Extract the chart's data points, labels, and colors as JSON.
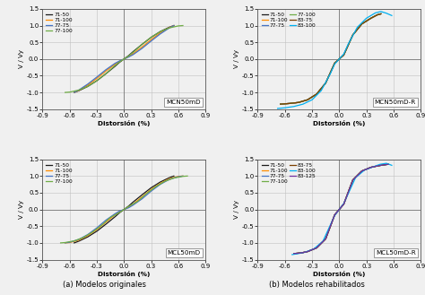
{
  "panels": [
    {
      "title": "MCN50mD",
      "xlim": [
        -0.9,
        0.9
      ],
      "ylim": [
        -1.5,
        1.5
      ],
      "yticks": [
        -1.5,
        -1.0,
        -0.5,
        0.0,
        0.5,
        1.0,
        1.5
      ],
      "xticks": [
        -0.9,
        -0.6,
        -0.3,
        0.0,
        0.3,
        0.6,
        0.9
      ],
      "legend_ncol": 1,
      "series": [
        {
          "label": "71-50",
          "color": "#1a1a1a",
          "lw": 0.9,
          "x": [
            -0.55,
            -0.5,
            -0.4,
            -0.3,
            -0.2,
            -0.1,
            -0.05,
            0.0,
            0.05,
            0.1,
            0.2,
            0.3,
            0.4,
            0.5,
            0.55
          ],
          "y": [
            -1.0,
            -0.95,
            -0.82,
            -0.65,
            -0.44,
            -0.22,
            -0.1,
            0.0,
            0.1,
            0.22,
            0.44,
            0.65,
            0.82,
            0.95,
            1.0
          ]
        },
        {
          "label": "71-100",
          "color": "#ff8c00",
          "lw": 0.9,
          "x": [
            -0.55,
            -0.5,
            -0.4,
            -0.3,
            -0.2,
            -0.1,
            -0.05,
            0.0,
            0.05,
            0.1,
            0.2,
            0.3,
            0.4,
            0.5,
            0.55
          ],
          "y": [
            -1.0,
            -0.94,
            -0.78,
            -0.58,
            -0.36,
            -0.16,
            -0.07,
            0.0,
            0.07,
            0.16,
            0.36,
            0.58,
            0.78,
            0.94,
            1.0
          ]
        },
        {
          "label": "77-75",
          "color": "#4472c4",
          "lw": 0.9,
          "x": [
            -0.55,
            -0.5,
            -0.4,
            -0.3,
            -0.2,
            -0.1,
            -0.05,
            0.0,
            0.05,
            0.1,
            0.2,
            0.3,
            0.4,
            0.5,
            0.55
          ],
          "y": [
            -1.0,
            -0.93,
            -0.75,
            -0.54,
            -0.32,
            -0.13,
            -0.06,
            0.0,
            0.06,
            0.13,
            0.32,
            0.54,
            0.75,
            0.93,
            1.0
          ]
        },
        {
          "label": "77-100",
          "color": "#70ad47",
          "lw": 0.9,
          "x": [
            -0.65,
            -0.6,
            -0.5,
            -0.4,
            -0.3,
            -0.2,
            -0.1,
            -0.05,
            0.0,
            0.05,
            0.1,
            0.2,
            0.3,
            0.4,
            0.5,
            0.6,
            0.65
          ],
          "y": [
            -1.0,
            -0.99,
            -0.93,
            -0.82,
            -0.65,
            -0.44,
            -0.2,
            -0.09,
            0.0,
            0.09,
            0.2,
            0.44,
            0.65,
            0.82,
            0.93,
            0.99,
            1.0
          ]
        }
      ]
    },
    {
      "title": "MCN50mD-R",
      "xlim": [
        -0.9,
        0.9
      ],
      "ylim": [
        -1.5,
        1.5
      ],
      "yticks": [
        -1.5,
        -1.0,
        -0.5,
        0.0,
        0.5,
        1.0,
        1.5
      ],
      "xticks": [
        -0.9,
        -0.6,
        -0.3,
        0.0,
        0.3,
        0.6,
        0.9
      ],
      "legend_ncol": 2,
      "series": [
        {
          "label": "71-50",
          "color": "#1a1a1a",
          "lw": 0.9,
          "x": [
            -0.65,
            -0.55,
            -0.45,
            -0.35,
            -0.25,
            -0.15,
            -0.05,
            0.0,
            0.05,
            0.15,
            0.25,
            0.35,
            0.42,
            0.46
          ],
          "y": [
            -1.35,
            -1.33,
            -1.3,
            -1.22,
            -1.05,
            -0.72,
            -0.12,
            0.0,
            0.12,
            0.72,
            1.05,
            1.22,
            1.32,
            1.35
          ]
        },
        {
          "label": "71-100",
          "color": "#ff8c00",
          "lw": 0.9,
          "x": [
            -0.65,
            -0.55,
            -0.45,
            -0.35,
            -0.25,
            -0.15,
            -0.05,
            0.0,
            0.05,
            0.15,
            0.25,
            0.35,
            0.42,
            0.46
          ],
          "y": [
            -1.35,
            -1.33,
            -1.3,
            -1.22,
            -1.05,
            -0.72,
            -0.12,
            0.0,
            0.12,
            0.72,
            1.05,
            1.22,
            1.32,
            1.35
          ]
        },
        {
          "label": "77-75",
          "color": "#4472c4",
          "lw": 0.9,
          "x": [
            -0.65,
            -0.55,
            -0.45,
            -0.35,
            -0.25,
            -0.15,
            -0.05,
            0.0,
            0.05,
            0.15,
            0.25,
            0.35,
            0.42,
            0.46
          ],
          "y": [
            -1.35,
            -1.33,
            -1.3,
            -1.22,
            -1.05,
            -0.72,
            -0.12,
            0.0,
            0.12,
            0.72,
            1.05,
            1.22,
            1.32,
            1.35
          ]
        },
        {
          "label": "77-100",
          "color": "#70ad47",
          "lw": 0.9,
          "x": [
            -0.65,
            -0.55,
            -0.45,
            -0.35,
            -0.25,
            -0.15,
            -0.05,
            0.0,
            0.05,
            0.15,
            0.25,
            0.35,
            0.42,
            0.46
          ],
          "y": [
            -1.35,
            -1.33,
            -1.3,
            -1.22,
            -1.05,
            -0.72,
            -0.12,
            0.0,
            0.12,
            0.72,
            1.05,
            1.22,
            1.32,
            1.35
          ]
        },
        {
          "label": "83-75",
          "color": "#7b3f00",
          "lw": 0.9,
          "x": [
            -0.65,
            -0.55,
            -0.45,
            -0.35,
            -0.25,
            -0.15,
            -0.05,
            0.0,
            0.05,
            0.15,
            0.25,
            0.35,
            0.42,
            0.46
          ],
          "y": [
            -1.35,
            -1.33,
            -1.3,
            -1.22,
            -1.05,
            -0.72,
            -0.12,
            0.0,
            0.12,
            0.72,
            1.05,
            1.22,
            1.32,
            1.35
          ]
        },
        {
          "label": "83-100",
          "color": "#00b0f0",
          "lw": 0.9,
          "x": [
            -0.68,
            -0.6,
            -0.5,
            -0.4,
            -0.3,
            -0.2,
            -0.1,
            -0.05,
            0.0,
            0.05,
            0.1,
            0.2,
            0.3,
            0.4,
            0.46,
            0.52,
            0.58
          ],
          "y": [
            -1.48,
            -1.46,
            -1.42,
            -1.35,
            -1.22,
            -0.95,
            -0.45,
            -0.15,
            0.0,
            0.15,
            0.45,
            0.95,
            1.22,
            1.38,
            1.42,
            1.37,
            1.3
          ]
        }
      ]
    },
    {
      "title": "MCL50mD",
      "xlim": [
        -0.9,
        0.9
      ],
      "ylim": [
        -1.5,
        1.5
      ],
      "yticks": [
        -1.5,
        -1.0,
        -0.5,
        0.0,
        0.5,
        1.0,
        1.5
      ],
      "xticks": [
        -0.9,
        -0.6,
        -0.3,
        0.0,
        0.3,
        0.6,
        0.9
      ],
      "legend_ncol": 1,
      "series": [
        {
          "label": "71-50",
          "color": "#1a1a1a",
          "lw": 0.9,
          "x": [
            -0.55,
            -0.5,
            -0.4,
            -0.3,
            -0.2,
            -0.1,
            -0.05,
            0.0,
            0.05,
            0.1,
            0.2,
            0.3,
            0.4,
            0.5,
            0.55
          ],
          "y": [
            -1.0,
            -0.95,
            -0.82,
            -0.65,
            -0.44,
            -0.22,
            -0.1,
            0.0,
            0.1,
            0.22,
            0.44,
            0.65,
            0.82,
            0.95,
            1.0
          ]
        },
        {
          "label": "71-100",
          "color": "#ff8c00",
          "lw": 0.9,
          "x": [
            -0.65,
            -0.6,
            -0.5,
            -0.4,
            -0.3,
            -0.2,
            -0.1,
            -0.05,
            0.0,
            0.05,
            0.1,
            0.2,
            0.3,
            0.4,
            0.5,
            0.6,
            0.65
          ],
          "y": [
            -1.0,
            -0.99,
            -0.92,
            -0.78,
            -0.6,
            -0.38,
            -0.16,
            -0.07,
            0.0,
            0.07,
            0.16,
            0.38,
            0.6,
            0.78,
            0.92,
            0.99,
            1.0
          ]
        },
        {
          "label": "77-75",
          "color": "#4472c4",
          "lw": 0.9,
          "x": [
            -0.65,
            -0.6,
            -0.5,
            -0.4,
            -0.3,
            -0.2,
            -0.1,
            -0.05,
            0.0,
            0.05,
            0.1,
            0.2,
            0.3,
            0.4,
            0.5,
            0.6,
            0.65
          ],
          "y": [
            -1.0,
            -0.98,
            -0.9,
            -0.75,
            -0.55,
            -0.32,
            -0.13,
            -0.05,
            0.0,
            0.05,
            0.13,
            0.32,
            0.55,
            0.75,
            0.9,
            0.98,
            1.0
          ]
        },
        {
          "label": "77-100",
          "color": "#70ad47",
          "lw": 0.9,
          "x": [
            -0.7,
            -0.65,
            -0.55,
            -0.45,
            -0.35,
            -0.25,
            -0.15,
            -0.05,
            0.0,
            0.05,
            0.15,
            0.25,
            0.35,
            0.45,
            0.55,
            0.65,
            0.7
          ],
          "y": [
            -1.0,
            -0.99,
            -0.94,
            -0.84,
            -0.68,
            -0.48,
            -0.24,
            -0.09,
            0.0,
            0.09,
            0.24,
            0.48,
            0.68,
            0.84,
            0.94,
            0.99,
            1.0
          ]
        }
      ]
    },
    {
      "title": "MCL50mD-R",
      "xlim": [
        -0.9,
        0.9
      ],
      "ylim": [
        -1.5,
        1.5
      ],
      "yticks": [
        -1.5,
        -1.0,
        -0.5,
        0.0,
        0.5,
        1.0,
        1.5
      ],
      "xticks": [
        -0.9,
        -0.6,
        -0.3,
        0.0,
        0.3,
        0.6,
        0.9
      ],
      "legend_ncol": 2,
      "series": [
        {
          "label": "71-50",
          "color": "#1a1a1a",
          "lw": 0.9,
          "x": [
            -0.5,
            -0.42,
            -0.35,
            -0.25,
            -0.15,
            -0.05,
            0.0,
            0.05,
            0.15,
            0.25,
            0.35,
            0.42,
            0.48,
            0.54
          ],
          "y": [
            -1.32,
            -1.3,
            -1.26,
            -1.15,
            -0.88,
            -0.16,
            0.0,
            0.16,
            0.88,
            1.15,
            1.26,
            1.3,
            1.33,
            1.35
          ]
        },
        {
          "label": "71-100",
          "color": "#ff8c00",
          "lw": 0.9,
          "x": [
            -0.5,
            -0.42,
            -0.35,
            -0.25,
            -0.15,
            -0.05,
            0.0,
            0.05,
            0.15,
            0.25,
            0.35,
            0.42,
            0.48,
            0.54
          ],
          "y": [
            -1.32,
            -1.3,
            -1.26,
            -1.15,
            -0.88,
            -0.16,
            0.0,
            0.16,
            0.88,
            1.15,
            1.26,
            1.3,
            1.33,
            1.35
          ]
        },
        {
          "label": "77-75",
          "color": "#4472c4",
          "lw": 0.9,
          "x": [
            -0.5,
            -0.42,
            -0.35,
            -0.25,
            -0.15,
            -0.05,
            0.0,
            0.05,
            0.15,
            0.25,
            0.35,
            0.42,
            0.48,
            0.54
          ],
          "y": [
            -1.32,
            -1.3,
            -1.26,
            -1.15,
            -0.88,
            -0.16,
            0.0,
            0.16,
            0.88,
            1.15,
            1.26,
            1.3,
            1.33,
            1.35
          ]
        },
        {
          "label": "77-100",
          "color": "#70ad47",
          "lw": 0.9,
          "x": [
            -0.5,
            -0.42,
            -0.35,
            -0.25,
            -0.15,
            -0.05,
            0.0,
            0.05,
            0.15,
            0.25,
            0.35,
            0.42,
            0.48,
            0.54
          ],
          "y": [
            -1.32,
            -1.3,
            -1.26,
            -1.15,
            -0.88,
            -0.16,
            0.0,
            0.16,
            0.88,
            1.15,
            1.26,
            1.3,
            1.33,
            1.35
          ]
        },
        {
          "label": "83-75",
          "color": "#7b3f00",
          "lw": 0.9,
          "x": [
            -0.5,
            -0.42,
            -0.35,
            -0.25,
            -0.15,
            -0.05,
            0.0,
            0.05,
            0.15,
            0.25,
            0.35,
            0.42,
            0.48,
            0.54
          ],
          "y": [
            -1.32,
            -1.3,
            -1.26,
            -1.15,
            -0.88,
            -0.16,
            0.0,
            0.16,
            0.88,
            1.15,
            1.26,
            1.3,
            1.33,
            1.35
          ]
        },
        {
          "label": "83-100",
          "color": "#00b0f0",
          "lw": 0.9,
          "x": [
            -0.52,
            -0.45,
            -0.38,
            -0.28,
            -0.18,
            -0.05,
            0.0,
            0.05,
            0.18,
            0.28,
            0.38,
            0.45,
            0.52,
            0.58
          ],
          "y": [
            -1.35,
            -1.32,
            -1.28,
            -1.18,
            -0.95,
            -0.18,
            0.0,
            0.18,
            0.95,
            1.18,
            1.28,
            1.35,
            1.38,
            1.32
          ]
        },
        {
          "label": "83-125",
          "color": "#7030a0",
          "lw": 0.9,
          "x": [
            -0.5,
            -0.42,
            -0.35,
            -0.25,
            -0.15,
            -0.05,
            0.0,
            0.05,
            0.15,
            0.25,
            0.35,
            0.42,
            0.48,
            0.54
          ],
          "y": [
            -1.32,
            -1.3,
            -1.26,
            -1.15,
            -0.88,
            -0.16,
            0.0,
            0.16,
            0.88,
            1.15,
            1.26,
            1.3,
            1.33,
            1.35
          ]
        }
      ]
    }
  ],
  "xlabel": "Distorsión (%)",
  "ylabel": "V / Vy",
  "caption_a": "(a) Modelos originales",
  "caption_b": "(b) Modelos rehabilitados",
  "bg_color": "#f0f0f0",
  "grid_color": "#d0d0d0"
}
